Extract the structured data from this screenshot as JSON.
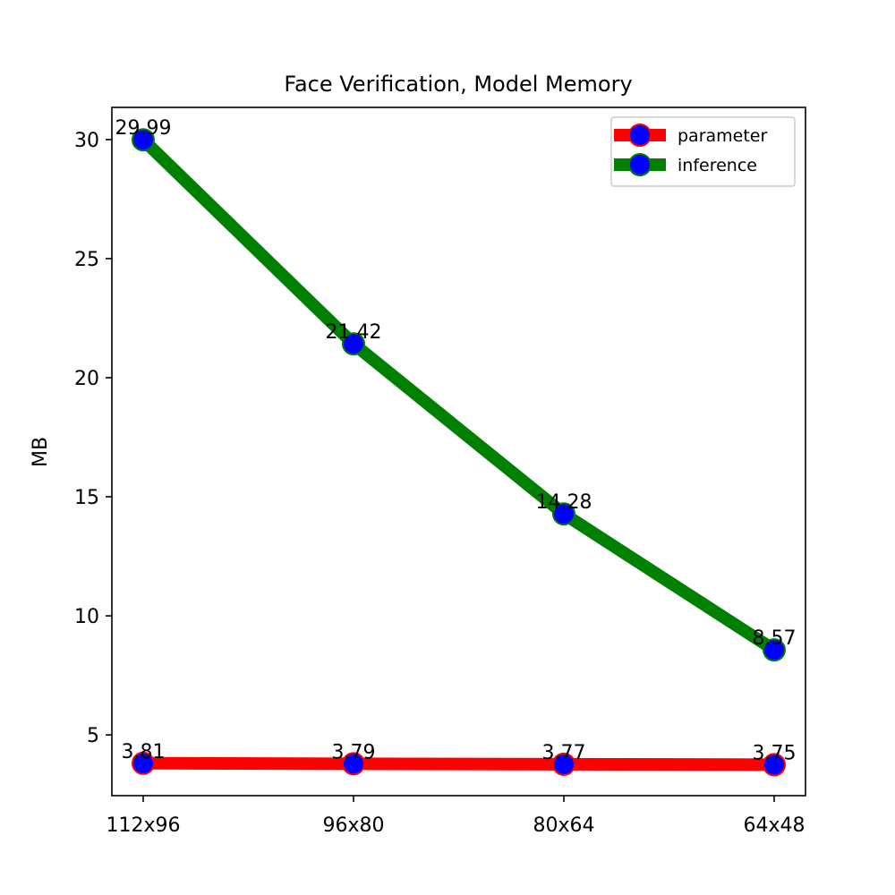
{
  "chart_data": {
    "type": "line",
    "title": "Face Verification, Model Memory",
    "xlabel": "",
    "ylabel": "MB",
    "categories": [
      "112x96",
      "96x80",
      "80x64",
      "64x48"
    ],
    "ylim": [
      2.45,
      31.35
    ],
    "yticks": [
      5,
      10,
      15,
      20,
      25,
      30
    ],
    "grid": false,
    "legend_position": "top-right",
    "series": [
      {
        "name": "parameter",
        "values": [
          3.81,
          3.79,
          3.77,
          3.75
        ],
        "labels": [
          "3.81",
          "3.79",
          "3.77",
          "3.75"
        ],
        "line_color": "#ff0000",
        "marker_fill": "#0000ff",
        "marker_edge": "#ff0000"
      },
      {
        "name": "inference",
        "values": [
          29.99,
          21.42,
          14.28,
          8.57
        ],
        "labels": [
          "29.99",
          "21.42",
          "14.28",
          "8.57"
        ],
        "line_color": "#008000",
        "marker_fill": "#0000ff",
        "marker_edge": "#008000"
      }
    ]
  }
}
